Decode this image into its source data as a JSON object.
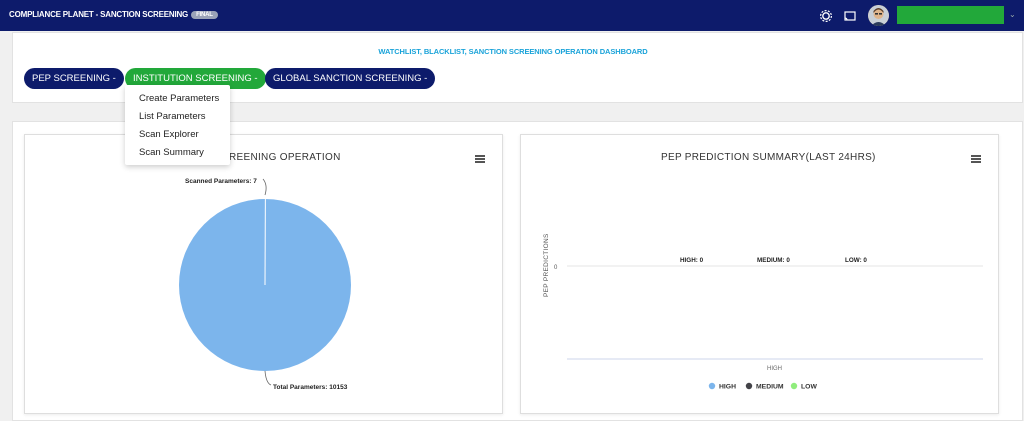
{
  "app": {
    "title": "COMPLIANCE PLANET - SANCTION SCREENING",
    "badge": "FINAL"
  },
  "dashboard": {
    "title": "WATCHLIST, BLACKLIST, SANCTION SCREENING OPERATION DASHBOARD",
    "tabs": [
      {
        "label": "PEP SCREENING -",
        "color": "#0d1b6b"
      },
      {
        "label": "INSTITUTION SCREENING -",
        "color": "#22a83a",
        "active": true
      },
      {
        "label": "GLOBAL SANCTION SCREENING -",
        "color": "#0d1b6b"
      }
    ]
  },
  "dropdown": {
    "items": [
      "Create Parameters",
      "List Parameters",
      "Scan Explorer",
      "Scan Summary"
    ]
  },
  "left_card": {
    "title_visible": "REENING OPERATION"
  },
  "right_card": {
    "title": "PEP PREDICTION SUMMARY(LAST 24HRS)"
  },
  "chart_data": [
    {
      "type": "pie",
      "title": "",
      "slices": [
        {
          "label": "Total Parameters",
          "value": 10153,
          "color": "#7cb5ec",
          "data_label": "Total Parameters: 10153"
        },
        {
          "label": "Scanned Parameters",
          "value": 7,
          "color": "#7cb5ec",
          "data_label": "Scanned Parameters: 7"
        }
      ]
    },
    {
      "type": "bar",
      "title": "PEP PREDICTION SUMMARY(LAST 24HRS)",
      "categories": [
        "HIGH"
      ],
      "ylabel": "PEP PREDICTIONS",
      "y_ticks": [
        "0"
      ],
      "series": [
        {
          "name": "HIGH",
          "values": [
            0
          ],
          "color": "#7cb5ec",
          "data_label": "HIGH: 0"
        },
        {
          "name": "MEDIUM",
          "values": [
            0
          ],
          "color": "#434348",
          "data_label": "MEDIUM: 0"
        },
        {
          "name": "LOW",
          "values": [
            0
          ],
          "color": "#90ed7d",
          "data_label": "LOW: 0"
        }
      ],
      "legend": "bottom-center"
    }
  ]
}
